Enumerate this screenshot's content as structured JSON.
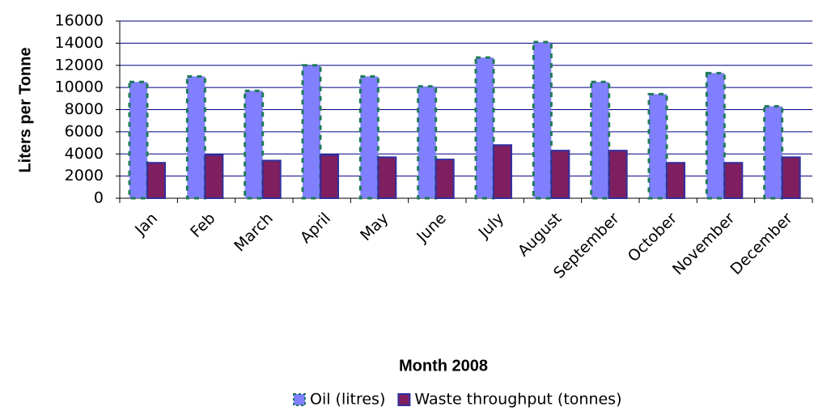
{
  "chart_data": {
    "type": "bar",
    "categories": [
      "Jan",
      "Feb",
      "March",
      "April",
      "May",
      "June",
      "July",
      "August",
      "September",
      "October",
      "November",
      "December"
    ],
    "series": [
      {
        "name": "Oil (litres)",
        "color": "#8080ff",
        "values": [
          10500,
          11000,
          9700,
          12000,
          11000,
          10100,
          12700,
          14100,
          10500,
          9400,
          11300,
          8300
        ]
      },
      {
        "name": "Waste throughput (tonnes)",
        "color": "#7f1f5f",
        "values": [
          3200,
          3900,
          3400,
          3900,
          3700,
          3500,
          4800,
          4300,
          4300,
          3200,
          3200,
          3700
        ]
      }
    ],
    "ylim": [
      0,
      16000
    ],
    "yticks": [
      0,
      2000,
      4000,
      6000,
      8000,
      10000,
      12000,
      14000,
      16000
    ],
    "ylabel": "Liters per Tonne",
    "xlabel": "Month 2008",
    "grid": true,
    "legend": "bottom"
  }
}
